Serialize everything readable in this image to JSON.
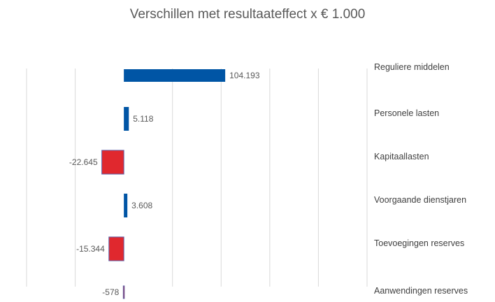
{
  "chart_data": {
    "type": "bar",
    "orientation": "horizontal",
    "title": "Verschillen met resultaateffect x € 1.000",
    "categories": [
      "Reguliere middelen",
      "Personele lasten",
      "Kapitaallasten",
      "Voorgaande dienstjaren",
      "Toevoegingen reserves",
      "Aanwendingen reserves"
    ],
    "values": [
      104193,
      5118,
      -22645,
      3608,
      -15344,
      -578
    ],
    "data_labels": [
      "104.193",
      "5.118",
      "-22.645",
      "3.608",
      "-15.344",
      "-578"
    ],
    "xlim": [
      -100000,
      250000
    ],
    "x_gridline_step": 50000,
    "grid": true,
    "legend": "none",
    "category_labels_position": "right",
    "colors": {
      "positive": "#0055A5",
      "negative": "#E0282E",
      "negative_border": "#5B5FA8",
      "grid": "#D9D9D9"
    }
  }
}
